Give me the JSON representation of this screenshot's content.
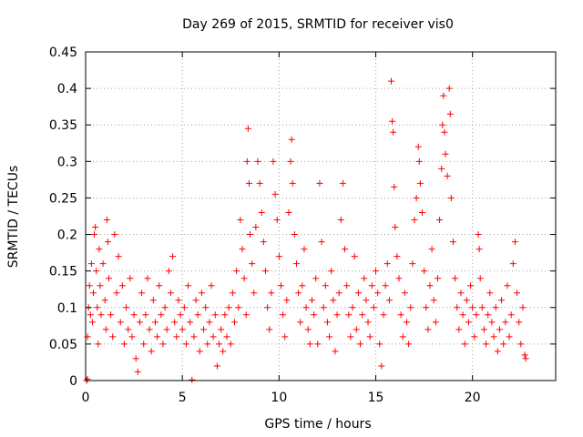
{
  "chart_data": {
    "type": "scatter",
    "title": "Day 269 of 2015, SRMTID for receiver vis0",
    "xlabel": "GPS time / hours",
    "ylabel": "SRMTID / TECUs",
    "xlim": [
      0,
      24.3
    ],
    "ylim": [
      0,
      0.45
    ],
    "x_ticks": [
      0,
      5,
      10,
      15,
      20
    ],
    "y_ticks": [
      0,
      0.05,
      0.1,
      0.15,
      0.2,
      0.25,
      0.3,
      0.35,
      0.4,
      0.45
    ],
    "x_tick_labels": [
      "0",
      "5",
      "10",
      "15",
      "20"
    ],
    "y_tick_labels": [
      "0",
      "0.05",
      "0.1",
      "0.15",
      "0.2",
      "0.25",
      "0.3",
      "0.35",
      "0.4",
      "0.45"
    ],
    "grid": true,
    "marker": "+",
    "marker_color": "#ff0000",
    "series": [
      {
        "name": "vis0",
        "points": [
          [
            0.05,
            0.0
          ],
          [
            0.1,
            0.002
          ],
          [
            0.1,
            0.06
          ],
          [
            0.15,
            0.1
          ],
          [
            0.2,
            0.13
          ],
          [
            0.25,
            0.09
          ],
          [
            0.3,
            0.16
          ],
          [
            0.35,
            0.08
          ],
          [
            0.4,
            0.12
          ],
          [
            0.45,
            0.2
          ],
          [
            0.5,
            0.21
          ],
          [
            0.55,
            0.15
          ],
          [
            0.6,
            0.1
          ],
          [
            0.65,
            0.05
          ],
          [
            0.7,
            0.18
          ],
          [
            0.75,
            0.13
          ],
          [
            0.8,
            0.09
          ],
          [
            0.9,
            0.16
          ],
          [
            1.0,
            0.11
          ],
          [
            1.05,
            0.07
          ],
          [
            1.1,
            0.22
          ],
          [
            1.15,
            0.19
          ],
          [
            1.2,
            0.14
          ],
          [
            1.3,
            0.09
          ],
          [
            1.4,
            0.06
          ],
          [
            1.5,
            0.2
          ],
          [
            1.6,
            0.12
          ],
          [
            1.7,
            0.17
          ],
          [
            1.8,
            0.08
          ],
          [
            1.9,
            0.13
          ],
          [
            2.0,
            0.05
          ],
          [
            2.1,
            0.1
          ],
          [
            2.2,
            0.07
          ],
          [
            2.3,
            0.14
          ],
          [
            2.4,
            0.06
          ],
          [
            2.5,
            0.09
          ],
          [
            2.6,
            0.03
          ],
          [
            2.7,
            0.012
          ],
          [
            2.8,
            0.08
          ],
          [
            2.9,
            0.12
          ],
          [
            3.0,
            0.05
          ],
          [
            3.1,
            0.09
          ],
          [
            3.2,
            0.14
          ],
          [
            3.3,
            0.07
          ],
          [
            3.4,
            0.04
          ],
          [
            3.5,
            0.11
          ],
          [
            3.6,
            0.08
          ],
          [
            3.7,
            0.06
          ],
          [
            3.8,
            0.13
          ],
          [
            3.9,
            0.09
          ],
          [
            4.0,
            0.05
          ],
          [
            4.1,
            0.1
          ],
          [
            4.2,
            0.07
          ],
          [
            4.3,
            0.15
          ],
          [
            4.4,
            0.12
          ],
          [
            4.5,
            0.17
          ],
          [
            4.6,
            0.08
          ],
          [
            4.7,
            0.06
          ],
          [
            4.8,
            0.11
          ],
          [
            4.9,
            0.09
          ],
          [
            5.0,
            0.07
          ],
          [
            5.1,
            0.1
          ],
          [
            5.2,
            0.05
          ],
          [
            5.3,
            0.13
          ],
          [
            5.4,
            0.08
          ],
          [
            5.5,
            0.001
          ],
          [
            5.6,
            0.06
          ],
          [
            5.7,
            0.11
          ],
          [
            5.8,
            0.09
          ],
          [
            5.9,
            0.04
          ],
          [
            6.0,
            0.12
          ],
          [
            6.1,
            0.07
          ],
          [
            6.2,
            0.1
          ],
          [
            6.3,
            0.05
          ],
          [
            6.4,
            0.08
          ],
          [
            6.5,
            0.13
          ],
          [
            6.6,
            0.06
          ],
          [
            6.7,
            0.09
          ],
          [
            6.8,
            0.02
          ],
          [
            6.9,
            0.05
          ],
          [
            7.0,
            0.07
          ],
          [
            7.1,
            0.04
          ],
          [
            7.2,
            0.09
          ],
          [
            7.3,
            0.06
          ],
          [
            7.4,
            0.1
          ],
          [
            7.5,
            0.05
          ],
          [
            7.6,
            0.12
          ],
          [
            7.7,
            0.08
          ],
          [
            7.8,
            0.15
          ],
          [
            7.9,
            0.1
          ],
          [
            8.0,
            0.22
          ],
          [
            8.1,
            0.18
          ],
          [
            8.2,
            0.14
          ],
          [
            8.3,
            0.09
          ],
          [
            8.35,
            0.3
          ],
          [
            8.4,
            0.345
          ],
          [
            8.45,
            0.27
          ],
          [
            8.5,
            0.2
          ],
          [
            8.6,
            0.16
          ],
          [
            8.7,
            0.12
          ],
          [
            8.8,
            0.21
          ],
          [
            8.9,
            0.3
          ],
          [
            9.0,
            0.27
          ],
          [
            9.1,
            0.23
          ],
          [
            9.2,
            0.19
          ],
          [
            9.3,
            0.15
          ],
          [
            9.4,
            0.1
          ],
          [
            9.5,
            0.07
          ],
          [
            9.6,
            0.12
          ],
          [
            9.7,
            0.3
          ],
          [
            9.8,
            0.255
          ],
          [
            9.9,
            0.22
          ],
          [
            10.0,
            0.17
          ],
          [
            10.1,
            0.13
          ],
          [
            10.2,
            0.09
          ],
          [
            10.3,
            0.06
          ],
          [
            10.4,
            0.11
          ],
          [
            10.5,
            0.23
          ],
          [
            10.6,
            0.3
          ],
          [
            10.65,
            0.33
          ],
          [
            10.7,
            0.27
          ],
          [
            10.8,
            0.2
          ],
          [
            10.9,
            0.16
          ],
          [
            11.0,
            0.12
          ],
          [
            11.1,
            0.08
          ],
          [
            11.2,
            0.13
          ],
          [
            11.3,
            0.18
          ],
          [
            11.4,
            0.1
          ],
          [
            11.5,
            0.07
          ],
          [
            11.6,
            0.05
          ],
          [
            11.7,
            0.11
          ],
          [
            11.8,
            0.09
          ],
          [
            11.9,
            0.14
          ],
          [
            12.0,
            0.05
          ],
          [
            12.1,
            0.27
          ],
          [
            12.2,
            0.19
          ],
          [
            12.3,
            0.1
          ],
          [
            12.4,
            0.13
          ],
          [
            12.5,
            0.08
          ],
          [
            12.6,
            0.06
          ],
          [
            12.7,
            0.15
          ],
          [
            12.8,
            0.11
          ],
          [
            12.9,
            0.04
          ],
          [
            13.0,
            0.09
          ],
          [
            13.1,
            0.12
          ],
          [
            13.2,
            0.22
          ],
          [
            13.3,
            0.27
          ],
          [
            13.4,
            0.18
          ],
          [
            13.5,
            0.13
          ],
          [
            13.6,
            0.09
          ],
          [
            13.7,
            0.06
          ],
          [
            13.8,
            0.1
          ],
          [
            13.9,
            0.17
          ],
          [
            14.0,
            0.07
          ],
          [
            14.1,
            0.12
          ],
          [
            14.2,
            0.05
          ],
          [
            14.3,
            0.09
          ],
          [
            14.4,
            0.14
          ],
          [
            14.5,
            0.11
          ],
          [
            14.6,
            0.08
          ],
          [
            14.7,
            0.06
          ],
          [
            14.8,
            0.13
          ],
          [
            14.9,
            0.1
          ],
          [
            15.0,
            0.15
          ],
          [
            15.1,
            0.12
          ],
          [
            15.2,
            0.05
          ],
          [
            15.3,
            0.02
          ],
          [
            15.4,
            0.09
          ],
          [
            15.5,
            0.13
          ],
          [
            15.6,
            0.16
          ],
          [
            15.7,
            0.11
          ],
          [
            15.8,
            0.41
          ],
          [
            15.85,
            0.355
          ],
          [
            15.9,
            0.34
          ],
          [
            15.95,
            0.265
          ],
          [
            16.0,
            0.21
          ],
          [
            16.1,
            0.17
          ],
          [
            16.2,
            0.14
          ],
          [
            16.3,
            0.09
          ],
          [
            16.4,
            0.06
          ],
          [
            16.5,
            0.12
          ],
          [
            16.6,
            0.08
          ],
          [
            16.7,
            0.05
          ],
          [
            16.8,
            0.1
          ],
          [
            16.9,
            0.16
          ],
          [
            17.0,
            0.22
          ],
          [
            17.1,
            0.25
          ],
          [
            17.2,
            0.32
          ],
          [
            17.25,
            0.3
          ],
          [
            17.3,
            0.27
          ],
          [
            17.4,
            0.23
          ],
          [
            17.5,
            0.15
          ],
          [
            17.6,
            0.1
          ],
          [
            17.7,
            0.07
          ],
          [
            17.8,
            0.13
          ],
          [
            17.9,
            0.18
          ],
          [
            18.0,
            0.11
          ],
          [
            18.1,
            0.08
          ],
          [
            18.2,
            0.14
          ],
          [
            18.3,
            0.22
          ],
          [
            18.4,
            0.29
          ],
          [
            18.45,
            0.35
          ],
          [
            18.5,
            0.39
          ],
          [
            18.55,
            0.34
          ],
          [
            18.6,
            0.31
          ],
          [
            18.7,
            0.28
          ],
          [
            18.8,
            0.4
          ],
          [
            18.85,
            0.365
          ],
          [
            18.9,
            0.25
          ],
          [
            19.0,
            0.19
          ],
          [
            19.1,
            0.14
          ],
          [
            19.2,
            0.1
          ],
          [
            19.3,
            0.07
          ],
          [
            19.4,
            0.12
          ],
          [
            19.5,
            0.09
          ],
          [
            19.6,
            0.05
          ],
          [
            19.7,
            0.11
          ],
          [
            19.8,
            0.08
          ],
          [
            19.9,
            0.13
          ],
          [
            20.0,
            0.1
          ],
          [
            20.1,
            0.06
          ],
          [
            20.2,
            0.09
          ],
          [
            20.3,
            0.2
          ],
          [
            20.35,
            0.18
          ],
          [
            20.4,
            0.14
          ],
          [
            20.5,
            0.1
          ],
          [
            20.6,
            0.07
          ],
          [
            20.7,
            0.05
          ],
          [
            20.8,
            0.09
          ],
          [
            20.9,
            0.12
          ],
          [
            21.0,
            0.08
          ],
          [
            21.1,
            0.06
          ],
          [
            21.2,
            0.1
          ],
          [
            21.3,
            0.04
          ],
          [
            21.4,
            0.07
          ],
          [
            21.5,
            0.11
          ],
          [
            21.6,
            0.05
          ],
          [
            21.7,
            0.08
          ],
          [
            21.8,
            0.13
          ],
          [
            21.9,
            0.06
          ],
          [
            22.0,
            0.09
          ],
          [
            22.1,
            0.16
          ],
          [
            22.2,
            0.19
          ],
          [
            22.3,
            0.12
          ],
          [
            22.4,
            0.08
          ],
          [
            22.5,
            0.05
          ],
          [
            22.6,
            0.1
          ],
          [
            22.7,
            0.035
          ],
          [
            22.75,
            0.03
          ]
        ]
      }
    ]
  }
}
